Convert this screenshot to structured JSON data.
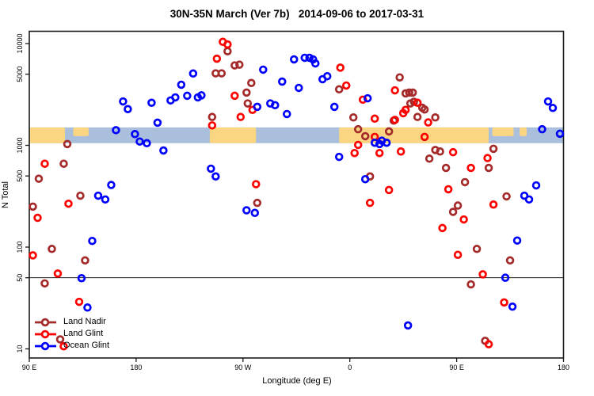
{
  "chart_data": {
    "type": "scatter",
    "title": "30N-35N March (Ver 7b)   2014-09-06 to 2017-03-31",
    "xlabel": "Longitude (deg E)",
    "ylabel": "N Total",
    "x_axis": {
      "domain": [
        90,
        540
      ],
      "ticks": [
        {
          "pos": 90,
          "label": "90 E"
        },
        {
          "pos": 180,
          "label": "180"
        },
        {
          "pos": 270,
          "label": "90 W"
        },
        {
          "pos": 360,
          "label": "0"
        },
        {
          "pos": 450,
          "label": "90 E"
        },
        {
          "pos": 540,
          "label": "180"
        }
      ]
    },
    "y_axis": {
      "scale": "log",
      "ticks": [
        {
          "value": 10000,
          "label": "10000"
        },
        {
          "value": 5000,
          "label": "5000"
        },
        {
          "value": 1000,
          "label": "1000"
        },
        {
          "value": 500,
          "label": "500"
        },
        {
          "value": 100,
          "label": "100"
        },
        {
          "value": 50,
          "label": "50"
        },
        {
          "value": 10,
          "label": "10"
        }
      ]
    },
    "reference_line": {
      "value": 50,
      "color": "#1a1a1a"
    },
    "map_band": {
      "n_top": 1500,
      "n_bottom": 1050,
      "ocean_color": "#A9BFDB",
      "land_color": "#FBD682",
      "land_patches_deg": [
        [
          90,
          120
        ],
        [
          242,
          281
        ],
        [
          351,
          477
        ]
      ],
      "island_patches_deg": [
        [
          127,
          140
        ],
        [
          480,
          498
        ],
        [
          503,
          509
        ]
      ]
    },
    "legend_position": "bottom-left",
    "series": [
      {
        "name": "Land Nadir",
        "color": "#A52A2A",
        "points": [
          [
            122,
            1030
          ],
          [
            244,
            1900
          ],
          [
            257,
            8400
          ],
          [
            263,
            6100
          ],
          [
            267,
            6200
          ],
          [
            247,
            5100
          ],
          [
            252,
            5100
          ],
          [
            277,
            4100
          ],
          [
            273,
            3300
          ],
          [
            274,
            2580
          ],
          [
            282,
            272
          ],
          [
            351,
            3550
          ],
          [
            363,
            1880
          ],
          [
            367,
            1440
          ],
          [
            373,
            1230
          ],
          [
            393,
            1370
          ],
          [
            397,
            1750
          ],
          [
            377,
            495
          ],
          [
            402,
            4650
          ],
          [
            407,
            3240
          ],
          [
            410,
            3300
          ],
          [
            413,
            3300
          ],
          [
            414,
            2680
          ],
          [
            411,
            2580
          ],
          [
            421,
            2340
          ],
          [
            423,
            2250
          ],
          [
            417,
            1900
          ],
          [
            432,
            1880
          ],
          [
            427,
            740
          ],
          [
            432,
            900
          ],
          [
            436,
            870
          ],
          [
            441,
            600
          ],
          [
            457,
            435
          ],
          [
            477,
            600
          ],
          [
            481,
            925
          ],
          [
            492,
            315
          ],
          [
            451,
            256
          ],
          [
            447,
            222
          ],
          [
            467,
            96
          ],
          [
            495,
            74
          ],
          [
            462,
            43
          ],
          [
            474,
            12
          ],
          [
            109,
            96
          ],
          [
            137,
            74
          ],
          [
            103,
            44
          ],
          [
            119,
            660
          ],
          [
            98,
            470
          ],
          [
            133,
            320
          ],
          [
            93,
            250
          ],
          [
            116,
            12.4
          ]
        ]
      },
      {
        "name": "Land Glint",
        "color": "#FF0000",
        "points": [
          [
            253,
            10400
          ],
          [
            257,
            9800
          ],
          [
            248,
            7100
          ],
          [
            352,
            5800
          ],
          [
            357,
            3870
          ],
          [
            381,
            1830
          ],
          [
            381,
            1210
          ],
          [
            367,
            1010
          ],
          [
            364,
            840
          ],
          [
            385,
            840
          ],
          [
            403,
            870
          ],
          [
            405,
            2070
          ],
          [
            371,
            2810
          ],
          [
            263,
            3070
          ],
          [
            278,
            2230
          ],
          [
            268,
            1900
          ],
          [
            244,
            1570
          ],
          [
            281,
            415
          ],
          [
            123,
            267
          ],
          [
            103,
            660
          ],
          [
            97,
            194
          ],
          [
            93,
            83
          ],
          [
            114,
            55
          ],
          [
            132,
            29
          ],
          [
            119,
            10.6
          ],
          [
            377,
            272
          ],
          [
            447,
            856
          ],
          [
            462,
            600
          ],
          [
            476,
            750
          ],
          [
            423,
            1210
          ],
          [
            417,
            2620
          ],
          [
            407,
            2230
          ],
          [
            398,
            3470
          ],
          [
            426,
            1680
          ],
          [
            398,
            1780
          ],
          [
            393,
            364
          ],
          [
            443,
            370
          ],
          [
            481,
            262
          ],
          [
            456,
            187
          ],
          [
            438,
            154
          ],
          [
            451,
            84
          ],
          [
            472,
            54
          ],
          [
            490,
            28.6
          ],
          [
            477,
            11.1
          ]
        ]
      },
      {
        "name": "Ocean Glint",
        "color": "#0000FF",
        "points": [
          [
            169,
            2700
          ],
          [
            173,
            2270
          ],
          [
            163,
            1410
          ],
          [
            193,
            2620
          ],
          [
            179,
            1290
          ],
          [
            183,
            1090
          ],
          [
            189,
            1050
          ],
          [
            198,
            1670
          ],
          [
            203,
            890
          ],
          [
            209,
            2760
          ],
          [
            213,
            2960
          ],
          [
            218,
            3940
          ],
          [
            223,
            3070
          ],
          [
            228,
            5080
          ],
          [
            232,
            2960
          ],
          [
            235,
            3100
          ],
          [
            243,
            590
          ],
          [
            247,
            495
          ],
          [
            273,
            230
          ],
          [
            280,
            217
          ],
          [
            287,
            5540
          ],
          [
            303,
            4230
          ],
          [
            313,
            6990
          ],
          [
            322,
            7250
          ],
          [
            326,
            7250
          ],
          [
            329,
            6990
          ],
          [
            331,
            6380
          ],
          [
            317,
            3670
          ],
          [
            337,
            4460
          ],
          [
            341,
            4780
          ],
          [
            282,
            2390
          ],
          [
            293,
            2580
          ],
          [
            297,
            2480
          ],
          [
            307,
            2030
          ],
          [
            347,
            2390
          ],
          [
            375,
            2900
          ],
          [
            351,
            770
          ],
          [
            381,
            1060
          ],
          [
            387,
            1110
          ],
          [
            385,
            1030
          ],
          [
            391,
            1060
          ],
          [
            373,
            465
          ],
          [
            409,
            17
          ],
          [
            501,
            116
          ],
          [
            491,
            50
          ],
          [
            497,
            26
          ],
          [
            507,
            320
          ],
          [
            511,
            294
          ],
          [
            517,
            404
          ],
          [
            522,
            1440
          ],
          [
            537,
            1300
          ],
          [
            527,
            2700
          ],
          [
            531,
            2330
          ],
          [
            159,
            408
          ],
          [
            148,
            320
          ],
          [
            154,
            294
          ],
          [
            143,
            115
          ],
          [
            134,
            49.5
          ],
          [
            139,
            25.5
          ]
        ]
      }
    ]
  }
}
